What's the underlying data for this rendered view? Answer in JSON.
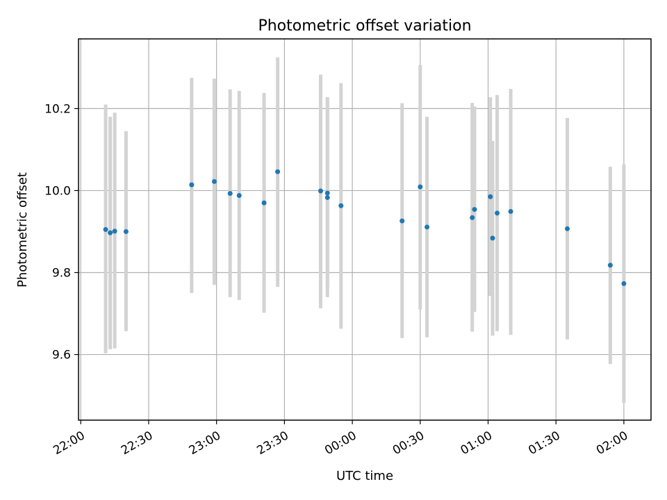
{
  "chart_data": {
    "type": "scatter",
    "title": "Photometric offset variation",
    "xlabel": "UTC time",
    "ylabel": "Photometric offset",
    "grid": true,
    "x_axis": {
      "kind": "time",
      "range": [
        "21:59",
        "02:12"
      ],
      "ticks": [
        "22:00",
        "22:30",
        "23:00",
        "23:30",
        "00:00",
        "00:30",
        "01:00",
        "01:30",
        "02:00"
      ]
    },
    "y_axis": {
      "range": [
        9.44,
        10.37
      ],
      "ticks": [
        "9.6",
        "9.8",
        "10.0",
        "10.2"
      ]
    },
    "colors": {
      "point": "#1f77b4",
      "errorbar": "#d3d3d3",
      "grid": "#b0b0b0"
    },
    "points": [
      {
        "time": "22:11",
        "y": 9.905,
        "lo": 9.603,
        "hi": 10.21
      },
      {
        "time": "22:13",
        "y": 9.897,
        "lo": 9.613,
        "hi": 10.18
      },
      {
        "time": "22:15",
        "y": 9.901,
        "lo": 9.615,
        "hi": 10.19
      },
      {
        "time": "22:20",
        "y": 9.9,
        "lo": 9.657,
        "hi": 10.145
      },
      {
        "time": "22:49",
        "y": 10.014,
        "lo": 9.75,
        "hi": 10.275
      },
      {
        "time": "22:59",
        "y": 10.022,
        "lo": 9.77,
        "hi": 10.273
      },
      {
        "time": "23:06",
        "y": 9.993,
        "lo": 9.74,
        "hi": 10.247
      },
      {
        "time": "23:10",
        "y": 9.988,
        "lo": 9.733,
        "hi": 10.243
      },
      {
        "time": "23:21",
        "y": 9.97,
        "lo": 9.702,
        "hi": 10.238
      },
      {
        "time": "23:27",
        "y": 10.046,
        "lo": 9.765,
        "hi": 10.325
      },
      {
        "time": "23:46",
        "y": 9.999,
        "lo": 9.713,
        "hi": 10.283
      },
      {
        "time": "23:49",
        "y": 9.994,
        "lo": 9.76,
        "hi": 10.228
      },
      {
        "time": "23:49",
        "y": 9.983,
        "lo": 9.74,
        "hi": 10.226
      },
      {
        "time": "23:55",
        "y": 9.963,
        "lo": 9.663,
        "hi": 10.262
      },
      {
        "time": "00:22",
        "y": 9.926,
        "lo": 9.64,
        "hi": 10.213
      },
      {
        "time": "00:30",
        "y": 10.009,
        "lo": 9.71,
        "hi": 10.306
      },
      {
        "time": "00:33",
        "y": 9.911,
        "lo": 9.642,
        "hi": 10.18
      },
      {
        "time": "00:53",
        "y": 9.934,
        "lo": 9.656,
        "hi": 10.214
      },
      {
        "time": "00:54",
        "y": 9.954,
        "lo": 9.704,
        "hi": 10.205
      },
      {
        "time": "01:01",
        "y": 9.985,
        "lo": 9.743,
        "hi": 10.228
      },
      {
        "time": "01:02",
        "y": 9.884,
        "lo": 9.646,
        "hi": 10.121
      },
      {
        "time": "01:04",
        "y": 9.945,
        "lo": 9.657,
        "hi": 10.233
      },
      {
        "time": "01:10",
        "y": 9.949,
        "lo": 9.648,
        "hi": 10.248
      },
      {
        "time": "01:35",
        "y": 9.907,
        "lo": 9.637,
        "hi": 10.177
      },
      {
        "time": "01:54",
        "y": 9.818,
        "lo": 9.577,
        "hi": 10.058
      },
      {
        "time": "02:00",
        "y": 9.773,
        "lo": 9.482,
        "hi": 10.064
      }
    ]
  }
}
